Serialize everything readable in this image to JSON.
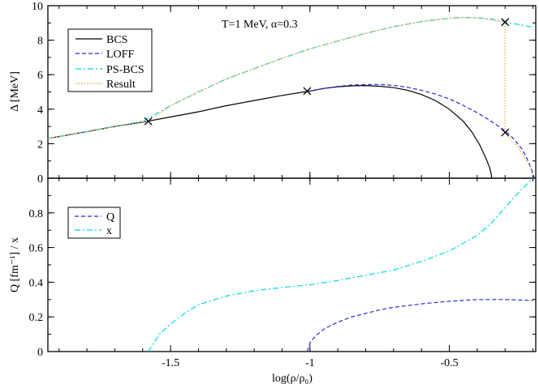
{
  "chart_data": [
    {
      "type": "line",
      "panel": "top",
      "annotation": "T=1 MeV, α=0.3",
      "ylabel": "Δ [MeV]",
      "xlabel": "",
      "xlim": [
        -1.94,
        -0.19
      ],
      "ylim": [
        0,
        10
      ],
      "x_ticks": [
        -1.5,
        -1,
        -0.5
      ],
      "y_ticks": [
        0,
        2,
        4,
        6,
        8,
        10
      ],
      "y_tick_labels": [
        "0",
        "2",
        "4",
        "6",
        "8",
        "10"
      ],
      "legend": {
        "position": "top-left",
        "entries": [
          {
            "label": "BCS",
            "color": "#000000",
            "dash": "solid"
          },
          {
            "label": "LOFF",
            "color": "#2828d6",
            "dash": "dashed"
          },
          {
            "label": "PS-BCS",
            "color": "#00d8e6",
            "dash": "dash-dot"
          },
          {
            "label": "Result",
            "color": "#f0a030",
            "dash": "dotted"
          }
        ]
      },
      "series": [
        {
          "name": "BCS",
          "color": "#000000",
          "dash": "solid",
          "x": [
            -1.94,
            -1.8,
            -1.7,
            -1.6,
            -1.5,
            -1.4,
            -1.3,
            -1.2,
            -1.1,
            -1.0,
            -0.95,
            -0.9,
            -0.85,
            -0.8,
            -0.75,
            -0.7,
            -0.65,
            -0.6,
            -0.55,
            -0.5,
            -0.45,
            -0.42,
            -0.39,
            -0.37,
            -0.355,
            -0.35,
            -0.348
          ],
          "y": [
            2.3,
            2.7,
            3.0,
            3.25,
            3.55,
            3.85,
            4.2,
            4.5,
            4.8,
            5.05,
            5.2,
            5.3,
            5.35,
            5.37,
            5.33,
            5.25,
            5.1,
            4.85,
            4.5,
            4.0,
            3.3,
            2.7,
            1.9,
            1.2,
            0.6,
            0.25,
            0.0
          ]
        },
        {
          "name": "LOFF",
          "color": "#2828d6",
          "dash": "dashed",
          "x": [
            -1.0,
            -0.95,
            -0.9,
            -0.85,
            -0.8,
            -0.75,
            -0.7,
            -0.65,
            -0.6,
            -0.55,
            -0.5,
            -0.45,
            -0.4,
            -0.35,
            -0.3,
            -0.27,
            -0.24,
            -0.22,
            -0.205,
            -0.195
          ],
          "y": [
            5.05,
            5.2,
            5.32,
            5.4,
            5.43,
            5.43,
            5.38,
            5.27,
            5.1,
            4.88,
            4.6,
            4.22,
            3.8,
            3.3,
            2.75,
            2.3,
            1.7,
            1.1,
            0.5,
            0.0
          ]
        },
        {
          "name": "PS-BCS",
          "color": "#00d8e6",
          "dash": "dash-dot",
          "x": [
            -1.94,
            -1.8,
            -1.7,
            -1.6,
            -1.5,
            -1.4,
            -1.3,
            -1.2,
            -1.1,
            -1.0,
            -0.9,
            -0.8,
            -0.7,
            -0.6,
            -0.5,
            -0.45,
            -0.4,
            -0.35,
            -0.3,
            -0.25,
            -0.2
          ],
          "y": [
            2.3,
            2.7,
            3.0,
            3.3,
            4.2,
            5.0,
            5.75,
            6.35,
            6.95,
            7.5,
            7.95,
            8.4,
            8.78,
            9.08,
            9.27,
            9.32,
            9.3,
            9.22,
            9.05,
            8.9,
            8.75
          ]
        },
        {
          "name": "Result",
          "color": "#f0a030",
          "dash": "dotted",
          "x": [
            -1.94,
            -1.8,
            -1.7,
            -1.6,
            -1.58,
            -1.5,
            -1.4,
            -1.3,
            -1.2,
            -1.1,
            -1.0,
            -0.9,
            -0.8,
            -0.7,
            -0.6,
            -0.5,
            -0.4,
            -0.3,
            -0.3,
            -0.3,
            -0.25,
            -0.2
          ],
          "y": [
            2.3,
            2.7,
            3.0,
            3.25,
            3.3,
            4.2,
            5.0,
            5.75,
            6.35,
            6.95,
            7.5,
            7.95,
            8.4,
            8.78,
            9.08,
            9.27,
            9.3,
            9.05,
            9.05,
            2.65,
            1.7,
            0.4
          ]
        }
      ],
      "markers": [
        {
          "x": -1.58,
          "y": 3.3
        },
        {
          "x": -1.01,
          "y": 5.05
        },
        {
          "x": -0.3,
          "y": 9.05
        },
        {
          "x": -0.3,
          "y": 2.65
        }
      ]
    },
    {
      "type": "line",
      "panel": "bottom",
      "ylabel": "Q [fm⁻¹] / x",
      "xlabel": "log(ρ/ρ₀)",
      "xlim": [
        -1.94,
        -0.19
      ],
      "ylim": [
        0,
        1
      ],
      "x_ticks": [
        -1.5,
        -1,
        -0.5
      ],
      "x_tick_labels": [
        "-1.5",
        "-1",
        "-0.5"
      ],
      "y_ticks": [
        0,
        0.2,
        0.4,
        0.6,
        0.8
      ],
      "y_tick_labels": [
        "0",
        "0.2",
        "0.4",
        "0.6",
        "0.8"
      ],
      "legend": {
        "position": "top-left",
        "entries": [
          {
            "label": "Q",
            "color": "#2828d6",
            "dash": "dashed"
          },
          {
            "label": "x",
            "color": "#00d8e6",
            "dash": "dash-dot"
          }
        ]
      },
      "series": [
        {
          "name": "Q",
          "color": "#2828d6",
          "dash": "dashed",
          "x": [
            -1.01,
            -1.0,
            -0.98,
            -0.95,
            -0.9,
            -0.85,
            -0.8,
            -0.75,
            -0.7,
            -0.6,
            -0.5,
            -0.45,
            -0.4,
            -0.3,
            -0.2
          ],
          "y": [
            0.0,
            0.05,
            0.09,
            0.13,
            0.17,
            0.2,
            0.22,
            0.24,
            0.255,
            0.275,
            0.29,
            0.295,
            0.3,
            0.3,
            0.295
          ]
        },
        {
          "name": "x",
          "color": "#00d8e6",
          "dash": "dash-dot",
          "x": [
            -1.58,
            -1.56,
            -1.54,
            -1.5,
            -1.45,
            -1.4,
            -1.3,
            -1.2,
            -1.1,
            -1.0,
            -0.9,
            -0.8,
            -0.7,
            -0.6,
            -0.5,
            -0.4,
            -0.35,
            -0.3,
            -0.25,
            -0.2
          ],
          "y": [
            0.0,
            0.05,
            0.1,
            0.16,
            0.22,
            0.27,
            0.32,
            0.35,
            0.37,
            0.385,
            0.41,
            0.44,
            0.47,
            0.52,
            0.58,
            0.67,
            0.74,
            0.83,
            0.92,
            1.0
          ]
        }
      ]
    }
  ]
}
